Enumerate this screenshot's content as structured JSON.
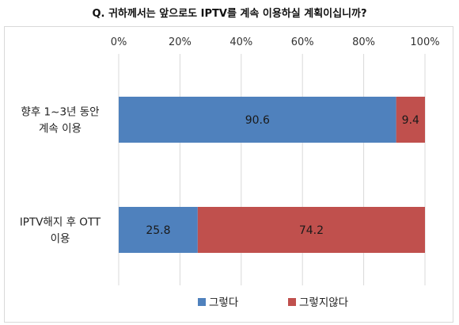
{
  "chart_data": {
    "type": "bar",
    "orientation": "horizontal",
    "stacked": true,
    "title": "Q. 귀하께서는 앞으로도 IPTV를 계속 이용하실 계획이십니까?",
    "categories": [
      [
        "향후 1~3년 동안",
        "계속 이용"
      ],
      [
        "IPTV해지 후 OTT",
        "이용"
      ]
    ],
    "series": [
      {
        "name": "그렇다",
        "values": [
          90.6,
          25.8
        ],
        "color": "#4F81BD"
      },
      {
        "name": "그렇지않다",
        "values": [
          9.4,
          74.2
        ],
        "color": "#C0504D"
      }
    ],
    "xlim": [
      0,
      100
    ],
    "xticks": [
      "0%",
      "20%",
      "40%",
      "60%",
      "80%",
      "100%"
    ],
    "grid": true,
    "legend_position": "bottom",
    "axis_position": "top"
  }
}
